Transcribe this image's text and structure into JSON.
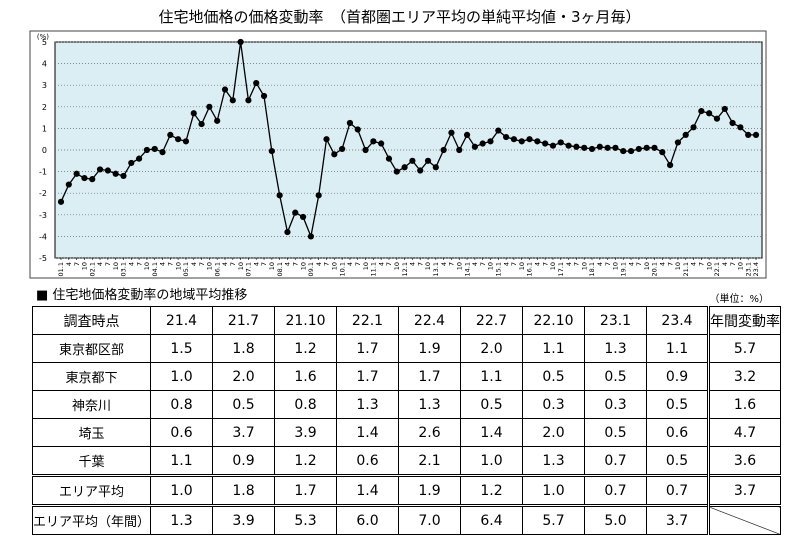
{
  "chart_data": {
    "type": "line",
    "title": "住宅地価格の価格変動率　（首都圏エリア平均の単純平均値・3ヶ月毎）",
    "ylabel": "(%)",
    "ylim": [
      -5,
      5
    ],
    "yticks": [
      5,
      4,
      3,
      2,
      1,
      0,
      -1,
      -2,
      -3,
      -4,
      -5
    ],
    "grid": true,
    "x": [
      "01.1",
      "4",
      "7",
      "10",
      "02.1",
      "4",
      "7",
      "10",
      "03.1",
      "4",
      "7",
      "10",
      "04.1",
      "4",
      "7",
      "10",
      "05.1",
      "4",
      "7",
      "10",
      "06.1",
      "4",
      "7",
      "10",
      "07.1",
      "4",
      "7",
      "10",
      "08.1",
      "4",
      "7",
      "10",
      "09.1",
      "4",
      "7",
      "10",
      "10.1",
      "4",
      "7",
      "10",
      "11.1",
      "4",
      "7",
      "10",
      "12.1",
      "4",
      "7",
      "10",
      "13.1",
      "4",
      "7",
      "10",
      "14.1",
      "4",
      "7",
      "10",
      "15.1",
      "4",
      "7",
      "10",
      "16.1",
      "4",
      "7",
      "10",
      "17.1",
      "4",
      "7",
      "10",
      "18.1",
      "4",
      "7",
      "10",
      "19.1",
      "4",
      "7",
      "10",
      "20.1",
      "4",
      "7",
      "10",
      "21.1",
      "4",
      "7",
      "10",
      "22.1",
      "4",
      "7",
      "10",
      "23.1",
      "23.4"
    ],
    "series": [
      {
        "color": "#000000",
        "values": [
          -2.4,
          -1.6,
          -1.1,
          -1.3,
          -1.35,
          -0.9,
          -0.95,
          -1.1,
          -1.2,
          -0.6,
          -0.4,
          0.0,
          0.05,
          -0.1,
          0.7,
          0.5,
          0.4,
          1.7,
          1.2,
          2.0,
          1.35,
          2.8,
          2.3,
          5.0,
          2.3,
          3.1,
          2.5,
          -0.05,
          -2.1,
          -3.8,
          -2.9,
          -3.1,
          -4.0,
          -2.1,
          0.5,
          -0.2,
          0.05,
          1.25,
          0.95,
          0.0,
          0.4,
          0.3,
          -0.4,
          -1.0,
          -0.8,
          -0.5,
          -0.95,
          -0.5,
          -0.8,
          0.0,
          0.8,
          0.0,
          0.7,
          0.15,
          0.3,
          0.4,
          0.9,
          0.6,
          0.5,
          0.4,
          0.5,
          0.4,
          0.3,
          0.2,
          0.35,
          0.2,
          0.15,
          0.1,
          0.05,
          0.15,
          0.1,
          0.1,
          -0.05,
          -0.05,
          0.05,
          0.1,
          0.1,
          -0.1,
          -0.7,
          0.35,
          0.7,
          1.05,
          1.8,
          1.7,
          1.45,
          1.9,
          1.25,
          1.05,
          0.7,
          0.7
        ]
      }
    ]
  },
  "table": {
    "section_title": "■ 住宅地価格変動率の地域平均推移",
    "unit": "（単位：%）",
    "header_label": "調査時点",
    "columns": [
      "21.4",
      "21.7",
      "21.10",
      "22.1",
      "22.4",
      "22.7",
      "22.10",
      "23.1",
      "23.4"
    ],
    "annual_header": "年間変動率",
    "rows": [
      {
        "label": "東京都区部",
        "values": [
          "1.5",
          "1.8",
          "1.2",
          "1.7",
          "1.9",
          "2.0",
          "1.1",
          "1.3",
          "1.1"
        ],
        "annual": "5.7"
      },
      {
        "label": "東京都下",
        "values": [
          "1.0",
          "2.0",
          "1.6",
          "1.7",
          "1.7",
          "1.1",
          "0.5",
          "0.5",
          "0.9"
        ],
        "annual": "3.2"
      },
      {
        "label": "神奈川",
        "values": [
          "0.8",
          "0.5",
          "0.8",
          "1.3",
          "1.3",
          "0.5",
          "0.3",
          "0.3",
          "0.5"
        ],
        "annual": "1.6"
      },
      {
        "label": "埼玉",
        "values": [
          "0.6",
          "3.7",
          "3.9",
          "1.4",
          "2.6",
          "1.4",
          "2.0",
          "0.5",
          "0.6"
        ],
        "annual": "4.7"
      },
      {
        "label": "千葉",
        "values": [
          "1.1",
          "0.9",
          "1.2",
          "0.6",
          "2.1",
          "1.0",
          "1.3",
          "0.7",
          "0.5"
        ],
        "annual": "3.6"
      }
    ],
    "area_avg": {
      "label": "エリア平均",
      "values": [
        "1.0",
        "1.8",
        "1.7",
        "1.4",
        "1.9",
        "1.2",
        "1.0",
        "0.7",
        "0.7"
      ],
      "annual": "3.7"
    },
    "area_avg_yearly": {
      "label": "エリア平均（年間）",
      "values": [
        "1.3",
        "3.9",
        "5.3",
        "6.0",
        "7.0",
        "6.4",
        "5.7",
        "5.0",
        "3.7"
      ]
    }
  }
}
